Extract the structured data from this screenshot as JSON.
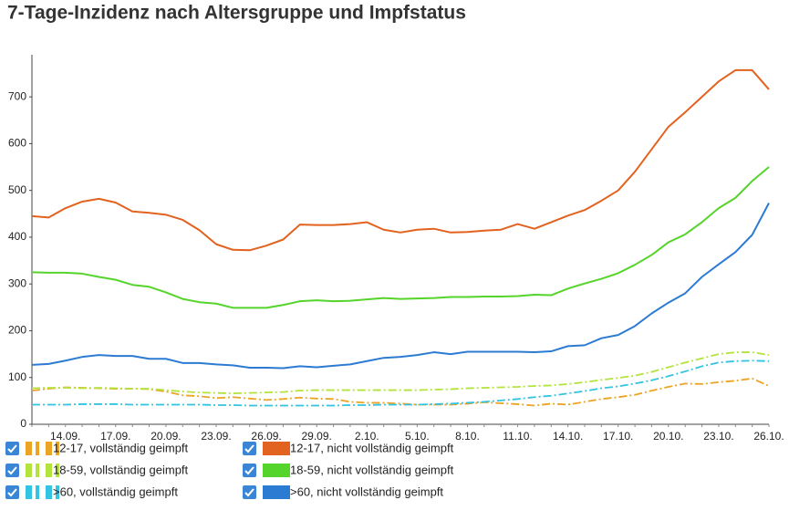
{
  "chart_data": {
    "type": "line",
    "title": "7-Tage-Inzidenz nach Altersgruppe und Impfstatus",
    "categories": [
      null,
      null,
      "14.09.",
      null,
      null,
      "17.09.",
      null,
      null,
      "20.09.",
      null,
      null,
      "23.09.",
      null,
      null,
      "26.09.",
      null,
      null,
      "29.09.",
      null,
      null,
      "2.10.",
      null,
      null,
      "5.10.",
      null,
      null,
      "8.10.",
      null,
      null,
      "11.10.",
      null,
      null,
      "14.10.",
      null,
      null,
      "17.10.",
      null,
      null,
      "20.10.",
      null,
      null,
      "23.10.",
      null,
      null,
      "26.10."
    ],
    "ylim": [
      0,
      790
    ],
    "yticks": [
      0,
      100,
      200,
      300,
      400,
      500,
      600,
      700
    ],
    "series": [
      {
        "name": "12-17, vollständig geimpft",
        "color": "#eba423",
        "style": "dashdot",
        "values": [
          72,
          76,
          79,
          78,
          77,
          76,
          76,
          75,
          70,
          62,
          60,
          56,
          58,
          55,
          52,
          54,
          57,
          55,
          54,
          48,
          46,
          46,
          44,
          42,
          42,
          42,
          44,
          47,
          45,
          43,
          40,
          44,
          42,
          48,
          54,
          58,
          63,
          72,
          80,
          87,
          86,
          90,
          93,
          98,
          82
        ]
      },
      {
        "name": "12-17, nicht vollständig geimpft",
        "color": "#e2621f",
        "style": "solid",
        "values": [
          445,
          442,
          462,
          476,
          482,
          474,
          455,
          452,
          448,
          437,
          415,
          385,
          373,
          372,
          382,
          395,
          427,
          426,
          426,
          428,
          432,
          416,
          410,
          416,
          418,
          410,
          411,
          414,
          416,
          428,
          418,
          432,
          446,
          458,
          478,
          500,
          540,
          588,
          636,
          667,
          700,
          733,
          757,
          757,
          716
        ]
      },
      {
        "name": "18-59, vollständig geimpft",
        "color": "#b4e33d",
        "style": "dashdot",
        "values": [
          77,
          78,
          78,
          77,
          78,
          77,
          76,
          76,
          73,
          70,
          68,
          67,
          66,
          67,
          68,
          69,
          72,
          73,
          73,
          73,
          73,
          73,
          73,
          73,
          74,
          75,
          77,
          78,
          79,
          80,
          82,
          83,
          86,
          90,
          95,
          99,
          104,
          112,
          122,
          132,
          141,
          150,
          154,
          154,
          148
        ]
      },
      {
        "name": "18-59, nicht vollständig geimpft",
        "color": "#55d42c",
        "style": "solid",
        "values": [
          325,
          324,
          324,
          322,
          315,
          309,
          298,
          294,
          282,
          268,
          261,
          258,
          249,
          249,
          249,
          255,
          263,
          265,
          263,
          264,
          267,
          270,
          268,
          269,
          270,
          272,
          272,
          273,
          273,
          274,
          277,
          276,
          290,
          301,
          311,
          323,
          341,
          362,
          389,
          406,
          432,
          462,
          484,
          520,
          550
        ]
      },
      {
        "name": ">60, vollständig geimpft",
        "color": "#33c3e3",
        "style": "dashdot",
        "values": [
          42,
          42,
          42,
          43,
          43,
          43,
          42,
          42,
          42,
          42,
          42,
          41,
          41,
          40,
          40,
          40,
          40,
          40,
          40,
          41,
          41,
          42,
          42,
          42,
          43,
          44,
          46,
          48,
          51,
          54,
          58,
          61,
          66,
          71,
          77,
          81,
          87,
          94,
          103,
          113,
          124,
          132,
          135,
          136,
          135
        ]
      },
      {
        "name": ">60, nicht vollständig geimpft",
        "color": "#2c7bd3",
        "style": "solid",
        "values": [
          127,
          129,
          136,
          144,
          148,
          146,
          146,
          140,
          140,
          131,
          131,
          128,
          126,
          121,
          121,
          120,
          124,
          122,
          125,
          128,
          135,
          142,
          144,
          148,
          154,
          150,
          155,
          155,
          155,
          155,
          154,
          156,
          167,
          169,
          184,
          191,
          210,
          237,
          260,
          280,
          315,
          342,
          368,
          405,
          473
        ]
      }
    ]
  }
}
